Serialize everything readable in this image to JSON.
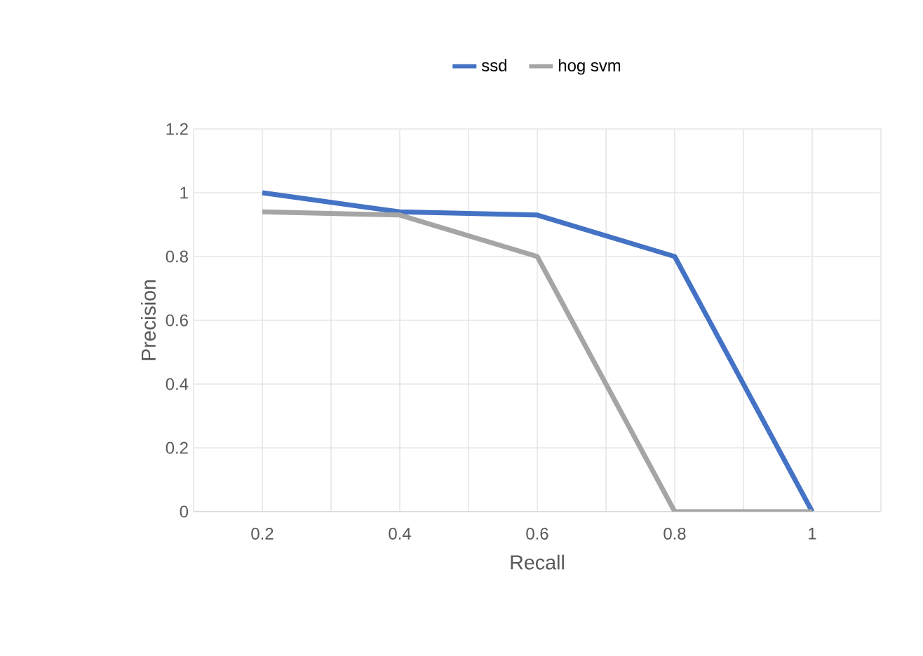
{
  "chart_data": {
    "type": "line",
    "xlabel": "Recall",
    "ylabel": "Precision",
    "categories": [
      "0.2",
      "0.4",
      "0.6",
      "0.8",
      "1"
    ],
    "series": [
      {
        "name": "ssd",
        "color": "#4472c4",
        "values": [
          1,
          0.94,
          0.93,
          0.8,
          0
        ]
      },
      {
        "name": "hog svm",
        "color": "#a5a5a5",
        "values": [
          0.94,
          0.93,
          0.8,
          0,
          0
        ]
      }
    ],
    "ylim": [
      0,
      1.2
    ],
    "yticks": [
      0,
      0.2,
      0.4,
      0.6,
      0.8,
      1,
      1.2
    ],
    "grid": true,
    "legend": "top",
    "marker": "none",
    "line_style": "solid"
  }
}
